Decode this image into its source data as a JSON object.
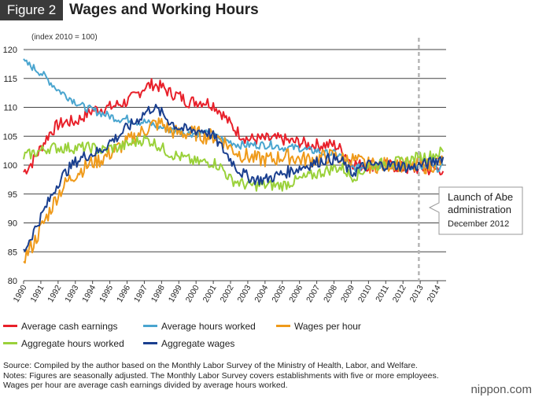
{
  "header": {
    "figure_label": "Figure 2",
    "title": "Wages and Working Hours"
  },
  "unit_note": "(index 2010 = 100)",
  "annotation": {
    "line1": "Launch of Abe",
    "line2": "administration",
    "line3": "December 2012"
  },
  "legend": {
    "items": [
      {
        "label": "Average cash earnings",
        "color": "#e8202a"
      },
      {
        "label": "Average hours worked",
        "color": "#4aa5cf"
      },
      {
        "label": "Wages per hour",
        "color": "#ef9a1a"
      },
      {
        "label": "Aggregate hours worked",
        "color": "#9ad13a"
      },
      {
        "label": "Aggregate wages",
        "color": "#1a3f8f"
      }
    ]
  },
  "source": {
    "line1": "Source: Compiled by the author based on the Monthly Labor Survey of the Ministry of Health, Labor, and Welfare.",
    "line2": "Notes: Figures are seasonally adjusted. The Monthly Labor Survey covers establishments with five or more employees. Wages per hour are average cash earnings divided by average hours worked."
  },
  "brand": {
    "name": "nippon",
    "suffix": ".com"
  },
  "chart_data": {
    "type": "line",
    "title": "Wages and Working Hours",
    "ylabel": "(index 2010 = 100)",
    "ylim": [
      80,
      120
    ],
    "yticks": [
      80,
      85,
      90,
      95,
      100,
      105,
      110,
      115,
      120
    ],
    "xlim": [
      1990,
      2014.5
    ],
    "xticks": [
      "1990",
      "1991",
      "1992",
      "1993",
      "1994",
      "1995",
      "1996",
      "1997",
      "1998",
      "1999",
      "2000",
      "2001",
      "2002",
      "2003",
      "2004",
      "2005",
      "2006",
      "2007",
      "2008",
      "2009",
      "2010",
      "2011",
      "2012",
      "2013",
      "2014"
    ],
    "grid": "horizontal",
    "vline_marker": {
      "x": 2012.92,
      "label": "Launch of Abe administration, December 2012"
    },
    "series": [
      {
        "name": "Average cash earnings",
        "color": "#e8202a",
        "x": [
          1990,
          1990.5,
          1991,
          1991.5,
          1992,
          1992.5,
          1993,
          1993.5,
          1994,
          1994.5,
          1995,
          1995.5,
          1996,
          1996.5,
          1997,
          1997.5,
          1998,
          1998.5,
          1999,
          1999.5,
          2000,
          2000.5,
          2001,
          2001.5,
          2002,
          2002.5,
          2003,
          2003.5,
          2004,
          2004.5,
          2005,
          2005.5,
          2006,
          2006.5,
          2007,
          2007.5,
          2008,
          2008.5,
          2009,
          2009.5,
          2010,
          2010.5,
          2011,
          2011.5,
          2012,
          2012.5,
          2013,
          2013.5,
          2014,
          2014.4
        ],
        "y": [
          98.8,
          100.5,
          103,
          105.5,
          107,
          107.5,
          107.5,
          108.5,
          109.5,
          109.8,
          110,
          110.5,
          111,
          112,
          113.5,
          114,
          113.5,
          112.5,
          112,
          111,
          111,
          111,
          110.5,
          109,
          107,
          105.5,
          104.5,
          104.5,
          104.5,
          104.5,
          104.5,
          104,
          104,
          103.5,
          103.5,
          103.5,
          103.5,
          102.5,
          100.5,
          100,
          100,
          100,
          100,
          99.8,
          99.5,
          99.2,
          99.5,
          99.2,
          99.3,
          99.2
        ]
      },
      {
        "name": "Average hours worked",
        "color": "#4aa5cf",
        "x": [
          1990,
          1990.5,
          1991,
          1991.5,
          1992,
          1992.5,
          1993,
          1993.5,
          1994,
          1994.5,
          1995,
          1995.5,
          1996,
          1996.5,
          1997,
          1997.5,
          1998,
          1998.5,
          1999,
          1999.5,
          2000,
          2000.5,
          2001,
          2001.5,
          2002,
          2002.5,
          2003,
          2003.5,
          2004,
          2004.5,
          2005,
          2005.5,
          2006,
          2006.5,
          2007,
          2007.5,
          2008,
          2008.5,
          2009,
          2009.5,
          2010,
          2010.5,
          2011,
          2011.5,
          2012,
          2012.5,
          2013,
          2013.5,
          2014,
          2014.4
        ],
        "y": [
          117.8,
          117,
          116,
          114.5,
          113,
          112,
          111,
          110,
          109.5,
          109,
          108.5,
          108,
          108,
          107.5,
          107.5,
          107,
          106.5,
          106,
          106,
          105.5,
          105.5,
          105.5,
          105,
          104.5,
          104,
          103.5,
          103.5,
          103.5,
          103.5,
          103.5,
          103,
          103,
          103,
          102.5,
          102.5,
          102,
          102,
          101.5,
          99.5,
          99.5,
          100,
          100,
          100,
          100,
          100,
          99.8,
          99.5,
          99.5,
          99.5,
          99.5
        ]
      },
      {
        "name": "Wages per hour",
        "color": "#ef9a1a",
        "x": [
          1990,
          1990.5,
          1991,
          1991.5,
          1992,
          1992.5,
          1993,
          1993.5,
          1994,
          1994.5,
          1995,
          1995.5,
          1996,
          1996.5,
          1997,
          1997.5,
          1998,
          1998.5,
          1999,
          1999.5,
          2000,
          2000.5,
          2001,
          2001.5,
          2002,
          2002.5,
          2003,
          2003.5,
          2004,
          2004.5,
          2005,
          2005.5,
          2006,
          2006.5,
          2007,
          2007.5,
          2008,
          2008.5,
          2009,
          2009.5,
          2010,
          2010.5,
          2011,
          2011.5,
          2012,
          2012.5,
          2013,
          2013.5,
          2014,
          2014.4
        ],
        "y": [
          84,
          86,
          89,
          92,
          95,
          97,
          98.5,
          99.5,
          100.5,
          101,
          102,
          103,
          104,
          105,
          106,
          107,
          107.2,
          106,
          105.5,
          105.5,
          105.5,
          105,
          105,
          104.5,
          103,
          102,
          101.5,
          101,
          101,
          101,
          101.5,
          101.5,
          101,
          101,
          101,
          101.5,
          101.5,
          101,
          101,
          100.5,
          100,
          100,
          100,
          100.5,
          100,
          99.5,
          100,
          99.8,
          100.5,
          100.5
        ]
      },
      {
        "name": "Aggregate hours worked",
        "color": "#9ad13a",
        "x": [
          1990,
          1990.5,
          1991,
          1991.5,
          1992,
          1992.5,
          1993,
          1993.5,
          1994,
          1994.5,
          1995,
          1995.5,
          1996,
          1996.5,
          1997,
          1997.5,
          1998,
          1998.5,
          1999,
          1999.5,
          2000,
          2000.5,
          2001,
          2001.5,
          2002,
          2002.5,
          2003,
          2003.5,
          2004,
          2004.5,
          2005,
          2005.5,
          2006,
          2006.5,
          2007,
          2007.5,
          2008,
          2008.5,
          2009,
          2009.5,
          2010,
          2010.5,
          2011,
          2011.5,
          2012,
          2012.5,
          2013,
          2013.5,
          2014,
          2014.4
        ],
        "y": [
          101.5,
          102,
          102.5,
          103,
          103,
          103,
          103,
          103,
          103,
          102.5,
          103,
          103,
          103.5,
          104,
          104.5,
          104,
          103,
          102,
          101.5,
          101,
          100.5,
          100.5,
          100.5,
          99.5,
          97.5,
          97,
          96.5,
          96.5,
          96.5,
          96.5,
          96.5,
          97,
          97.5,
          98,
          98.5,
          99,
          99.5,
          99.5,
          98,
          98.5,
          100,
          100,
          100.5,
          100.5,
          100.5,
          101,
          101.5,
          101.5,
          102,
          102.5
        ]
      },
      {
        "name": "Aggregate wages",
        "color": "#1a3f8f",
        "x": [
          1990,
          1990.5,
          1991,
          1991.5,
          1992,
          1992.5,
          1993,
          1993.5,
          1994,
          1994.5,
          1995,
          1995.5,
          1996,
          1996.5,
          1997,
          1997.5,
          1998,
          1998.5,
          1999,
          1999.5,
          2000,
          2000.5,
          2001,
          2001.5,
          2002,
          2002.5,
          2003,
          2003.5,
          2004,
          2004.5,
          2005,
          2005.5,
          2006,
          2006.5,
          2007,
          2007.5,
          2008,
          2008.5,
          2009,
          2009.5,
          2010,
          2010.5,
          2011,
          2011.5,
          2012,
          2012.5,
          2013,
          2013.5,
          2014,
          2014.4
        ],
        "y": [
          85,
          88,
          91,
          94,
          97,
          99,
          100.5,
          101.5,
          102,
          102.5,
          104,
          105,
          106.5,
          107.5,
          109,
          110,
          109,
          107.5,
          106.5,
          106,
          106,
          106,
          105,
          103,
          101,
          99,
          98,
          97.5,
          97.5,
          98,
          98.5,
          99,
          99.5,
          100,
          100.5,
          101,
          101,
          100.5,
          98.5,
          99.5,
          100,
          100,
          100,
          100,
          99.8,
          99.5,
          100,
          100.3,
          101,
          101.5
        ]
      }
    ]
  }
}
